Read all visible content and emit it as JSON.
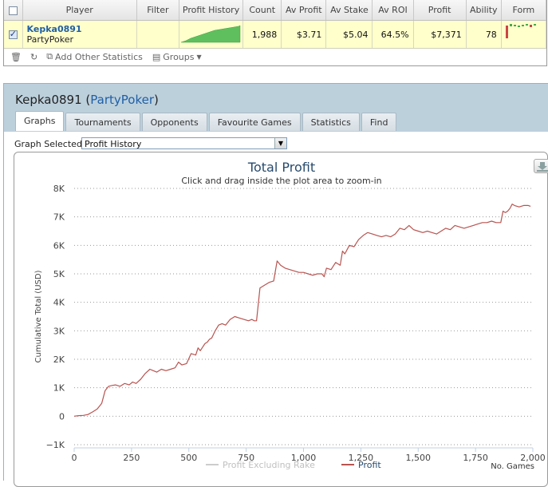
{
  "stats": {
    "columns": [
      "",
      "Player",
      "Filter",
      "Profit History",
      "Count",
      "Av Profit",
      "Av Stake",
      "Av ROI",
      "Profit",
      "Ability",
      "Form"
    ],
    "row": {
      "checked": true,
      "player_name": "Kepka0891",
      "player_site": "PartyPoker",
      "filter": "",
      "count": "1,988",
      "av_profit": "$3.71",
      "av_stake": "$5.04",
      "av_roi": "64.5%",
      "profit": "$7,371",
      "ability": "78"
    },
    "toolbar": {
      "add_stats_label": "Add Other Statistics",
      "groups_label": "Groups"
    }
  },
  "player_panel": {
    "player_name": "Kepka0891",
    "paren_open": "(",
    "site": "PartyPoker",
    "paren_close": ")",
    "tabs": [
      "Graphs",
      "Tournaments",
      "Opponents",
      "Favourite Games",
      "Statistics",
      "Find"
    ],
    "active_tab": "Graphs",
    "graph_selected_label": "Graph Selected:",
    "graph_selected_value": "Profit History"
  },
  "colors": {
    "profit_line": "#b85450",
    "excl_rake_line": "#cccccc",
    "accent_link": "#1f5fa6",
    "row_highlight": "#ffffcc",
    "panel_bg": "#bcd0dc"
  },
  "chart_data": {
    "type": "line",
    "title": "Total Profit",
    "subtitle": "Click and drag inside the plot area to zoom-in",
    "xlabel": "No. Games",
    "ylabel": "Cumulative Total (USD)",
    "xlim": [
      0,
      2000
    ],
    "ylim": [
      -1000,
      8000
    ],
    "xticks": [
      0,
      250,
      500,
      750,
      1000,
      1250,
      1500,
      1750,
      2000
    ],
    "xtick_labels": [
      "0",
      "250",
      "500",
      "750",
      "1,000",
      "1,250",
      "1,500",
      "1,750",
      "2,000"
    ],
    "yticks": [
      -1000,
      0,
      1000,
      2000,
      3000,
      4000,
      5000,
      6000,
      7000,
      8000
    ],
    "ytick_labels": [
      "−1K",
      "0",
      "1K",
      "2K",
      "3K",
      "4K",
      "5K",
      "6K",
      "7K",
      "8K"
    ],
    "grid": "horizontal dotted",
    "legend_position": "bottom-center",
    "series": [
      {
        "name": "Profit Excluding Rake",
        "color": "#cccccc",
        "x": [],
        "y": []
      },
      {
        "name": "Profit",
        "color": "#b85450",
        "x": [
          0,
          20,
          40,
          60,
          80,
          100,
          120,
          135,
          150,
          165,
          180,
          200,
          220,
          240,
          255,
          270,
          290,
          310,
          330,
          345,
          360,
          380,
          400,
          420,
          440,
          455,
          470,
          490,
          510,
          530,
          540,
          550,
          570,
          580,
          590,
          600,
          615,
          630,
          645,
          660,
          680,
          700,
          720,
          740,
          760,
          775,
          785,
          795,
          810,
          830,
          850,
          870,
          885,
          900,
          920,
          940,
          960,
          980,
          1000,
          1020,
          1040,
          1060,
          1080,
          1090,
          1100,
          1120,
          1140,
          1160,
          1170,
          1180,
          1200,
          1220,
          1240,
          1260,
          1280,
          1300,
          1320,
          1340,
          1360,
          1380,
          1400,
          1420,
          1440,
          1460,
          1480,
          1500,
          1520,
          1540,
          1560,
          1580,
          1600,
          1620,
          1640,
          1660,
          1680,
          1700,
          1720,
          1740,
          1760,
          1780,
          1800,
          1820,
          1840,
          1860,
          1870,
          1880,
          1890,
          1900,
          1910,
          1920,
          1940,
          1960,
          1980,
          1990
        ],
        "y": [
          0,
          20,
          30,
          60,
          150,
          250,
          450,
          900,
          1050,
          1080,
          1100,
          1050,
          1150,
          1100,
          1200,
          1150,
          1300,
          1500,
          1650,
          1600,
          1550,
          1650,
          1600,
          1650,
          1700,
          1900,
          1800,
          1850,
          2200,
          2150,
          2400,
          2300,
          2550,
          2600,
          2700,
          2750,
          3000,
          3200,
          3250,
          3200,
          3400,
          3500,
          3450,
          3400,
          3350,
          3400,
          3350,
          3350,
          4500,
          4600,
          4700,
          4750,
          5450,
          5300,
          5200,
          5150,
          5100,
          5050,
          5050,
          5000,
          4950,
          5000,
          5000,
          4900,
          5200,
          5150,
          5400,
          5300,
          5800,
          5700,
          6000,
          5950,
          6200,
          6350,
          6450,
          6400,
          6350,
          6300,
          6350,
          6300,
          6400,
          6600,
          6550,
          6700,
          6550,
          6500,
          6450,
          6500,
          6450,
          6400,
          6500,
          6600,
          6550,
          6700,
          6650,
          6600,
          6650,
          6700,
          6750,
          6800,
          6800,
          6850,
          6800,
          6800,
          7200,
          7150,
          7200,
          7300,
          7450,
          7400,
          7350,
          7400,
          7400,
          7371
        ]
      }
    ]
  }
}
